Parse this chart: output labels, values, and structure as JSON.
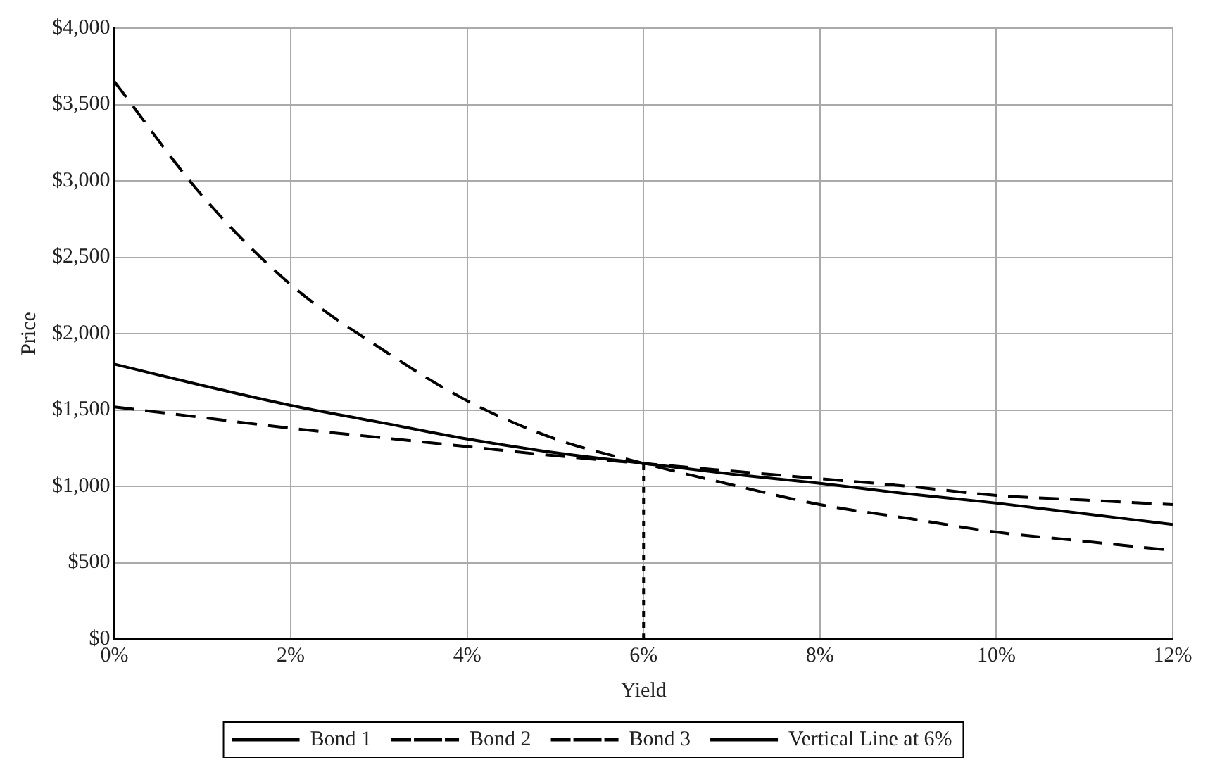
{
  "chart_data": {
    "type": "line",
    "xlabel": "Yield",
    "ylabel": "Price",
    "x": [
      0,
      1,
      2,
      3,
      4,
      5,
      6,
      7,
      8,
      9,
      10,
      11,
      12
    ],
    "series": [
      {
        "name": "Bond 1",
        "color": "#000000",
        "line_style": "solid",
        "values": [
          1800,
          1660,
          1530,
          1420,
          1310,
          1220,
          1150,
          1080,
          1020,
          950,
          890,
          820,
          750
        ]
      },
      {
        "name": "Bond 2",
        "color": "#000000",
        "line_style": "dashed",
        "values": [
          1520,
          1450,
          1380,
          1320,
          1260,
          1200,
          1150,
          1100,
          1050,
          1000,
          940,
          910,
          880
        ]
      },
      {
        "name": "Bond 3",
        "color": "#000000",
        "line_style": "dashed",
        "values": [
          3650,
          2900,
          2320,
          1910,
          1560,
          1310,
          1150,
          1010,
          880,
          790,
          700,
          640,
          580
        ]
      },
      {
        "name": "Vertical Line at 6%",
        "color": "#000000",
        "line_style": "dotted",
        "x": [
          6,
          6
        ],
        "values": [
          0,
          1150
        ]
      }
    ],
    "xlim": [
      0,
      12
    ],
    "xticks": [
      {
        "value": 0,
        "label": "0%"
      },
      {
        "value": 2,
        "label": "2%"
      },
      {
        "value": 4,
        "label": "4%"
      },
      {
        "value": 6,
        "label": "6%"
      },
      {
        "value": 8,
        "label": "8%"
      },
      {
        "value": 10,
        "label": "10%"
      },
      {
        "value": 12,
        "label": "12%"
      }
    ],
    "ylim": [
      0,
      4000
    ],
    "yticks": [
      {
        "value": 0,
        "label": "$0"
      },
      {
        "value": 500,
        "label": "$500"
      },
      {
        "value": 1000,
        "label": "$1,000"
      },
      {
        "value": 1500,
        "label": "$1,500"
      },
      {
        "value": 2000,
        "label": "$2,000"
      },
      {
        "value": 2500,
        "label": "$2,500"
      },
      {
        "value": 3000,
        "label": "$3,000"
      },
      {
        "value": 3500,
        "label": "$3,500"
      },
      {
        "value": 4000,
        "label": "$4,000"
      }
    ],
    "grid": true,
    "legend": "bottom",
    "marker": "none"
  }
}
